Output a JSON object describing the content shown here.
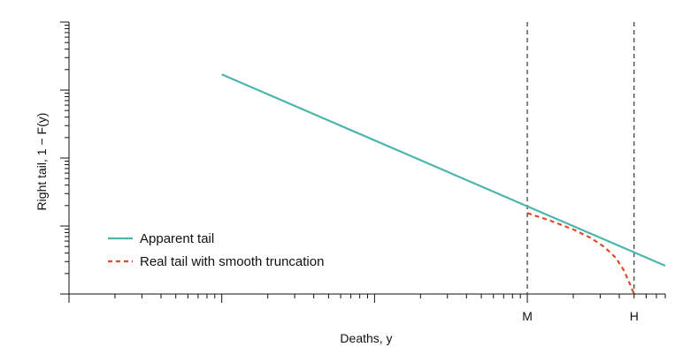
{
  "chart_data": {
    "type": "line",
    "scale": {
      "x": "log",
      "y": "log"
    },
    "xlabel": "Deaths, y",
    "ylabel": "Right tail, 1 − F(y)",
    "xtick_labels": [
      {
        "label": "M",
        "x": 10000
      },
      {
        "label": "H",
        "x": 50000
      }
    ],
    "vlines": [
      {
        "x": 10000,
        "style": "dashed",
        "label": "M"
      },
      {
        "x": 50000,
        "style": "dashed",
        "label": "H"
      }
    ],
    "xlim": [
      10,
      80000
    ],
    "ylim": [
      0.001,
      10
    ],
    "grid": false,
    "legend_position": "bottom-left",
    "series": [
      {
        "name": "Apparent tail",
        "style": "solid",
        "color": "#4db6ac",
        "points": [
          {
            "x": 100,
            "y": 1.7
          },
          {
            "x": 80000,
            "y": 0.0026
          }
        ]
      },
      {
        "name": "Real tail with smooth truncation",
        "style": "dashed",
        "color": "#e04a2a",
        "points": [
          {
            "x": 10000,
            "y": 0.0155
          },
          {
            "x": 14000,
            "y": 0.0121
          },
          {
            "x": 20000,
            "y": 0.0089
          },
          {
            "x": 26000,
            "y": 0.0067
          },
          {
            "x": 32000,
            "y": 0.0049
          },
          {
            "x": 38000,
            "y": 0.0034
          },
          {
            "x": 43000,
            "y": 0.0022
          },
          {
            "x": 47000,
            "y": 0.0014
          },
          {
            "x": 50000,
            "y": 0.001
          }
        ]
      }
    ]
  }
}
